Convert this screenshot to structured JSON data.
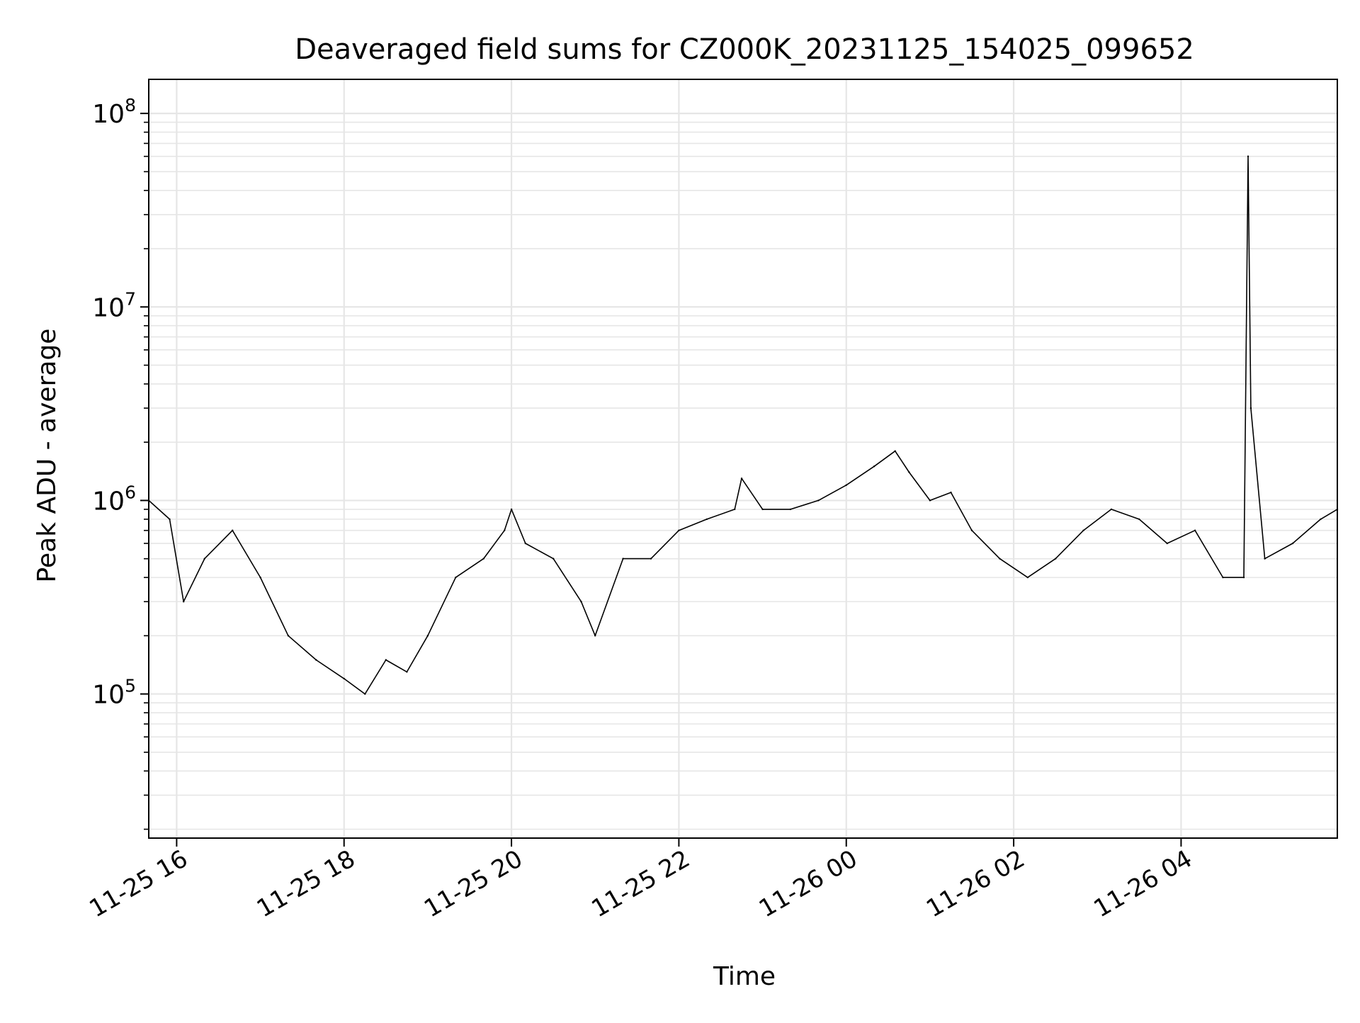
{
  "chart_data": {
    "type": "line",
    "title": "Deaveraged field sums for CZ000K_20231125_154025_099652",
    "xlabel": "Time",
    "ylabel": "Peak ADU - average",
    "yscale": "log",
    "grid": true,
    "line_color": "#000000",
    "grid_color": "#e6e6e6",
    "xlim": [
      "2023-11-25 15:40",
      "2023-11-26 05:52"
    ],
    "ylim": [
      18000,
      150000000
    ],
    "x_ticks": [
      {
        "value": "2023-11-25 16:00",
        "label": "11-25 16"
      },
      {
        "value": "2023-11-25 18:00",
        "label": "11-25 18"
      },
      {
        "value": "2023-11-25 20:00",
        "label": "11-25 20"
      },
      {
        "value": "2023-11-25 22:00",
        "label": "11-25 22"
      },
      {
        "value": "2023-11-26 00:00",
        "label": "11-26 00"
      },
      {
        "value": "2023-11-26 02:00",
        "label": "11-26 02"
      },
      {
        "value": "2023-11-26 04:00",
        "label": "11-26 04"
      }
    ],
    "y_ticks": [
      {
        "value": 100000,
        "base": "10",
        "exp": "5"
      },
      {
        "value": 1000000,
        "base": "10",
        "exp": "6"
      },
      {
        "value": 10000000,
        "base": "10",
        "exp": "7"
      },
      {
        "value": 100000000,
        "base": "10",
        "exp": "8"
      }
    ],
    "series": [
      {
        "x": [
          "2023-11-25 15:40",
          "2023-11-25 15:55",
          "2023-11-25 16:05",
          "2023-11-25 16:20",
          "2023-11-25 16:40",
          "2023-11-25 17:00",
          "2023-11-25 17:20",
          "2023-11-25 17:40",
          "2023-11-25 18:00",
          "2023-11-25 18:15",
          "2023-11-25 18:30",
          "2023-11-25 18:45",
          "2023-11-25 19:00",
          "2023-11-25 19:20",
          "2023-11-25 19:40",
          "2023-11-25 19:55",
          "2023-11-25 20:00",
          "2023-11-25 20:10",
          "2023-11-25 20:30",
          "2023-11-25 20:50",
          "2023-11-25 21:00",
          "2023-11-25 21:20",
          "2023-11-25 21:40",
          "2023-11-25 22:00",
          "2023-11-25 22:20",
          "2023-11-25 22:40",
          "2023-11-25 22:45",
          "2023-11-25 23:00",
          "2023-11-25 23:20",
          "2023-11-25 23:40",
          "2023-11-26 00:00",
          "2023-11-26 00:20",
          "2023-11-26 00:35",
          "2023-11-26 00:45",
          "2023-11-26 01:00",
          "2023-11-26 01:15",
          "2023-11-26 01:30",
          "2023-11-26 01:50",
          "2023-11-26 02:10",
          "2023-11-26 02:30",
          "2023-11-26 02:50",
          "2023-11-26 03:10",
          "2023-11-26 03:30",
          "2023-11-26 03:50",
          "2023-11-26 04:10",
          "2023-11-26 04:30",
          "2023-11-26 04:45",
          "2023-11-26 04:48",
          "2023-11-26 04:50",
          "2023-11-26 05:00",
          "2023-11-26 05:20",
          "2023-11-26 05:40",
          "2023-11-26 05:52"
        ],
        "y": [
          1000000,
          800000,
          300000,
          500000,
          700000,
          400000,
          200000,
          150000,
          120000,
          100000,
          150000,
          130000,
          200000,
          400000,
          500000,
          700000,
          900000,
          600000,
          500000,
          300000,
          200000,
          500000,
          500000,
          700000,
          800000,
          900000,
          1300000,
          900000,
          900000,
          1000000,
          1200000,
          1500000,
          1800000,
          1400000,
          1000000,
          1100000,
          700000,
          500000,
          400000,
          500000,
          700000,
          900000,
          800000,
          600000,
          700000,
          400000,
          400000,
          60000000,
          3000000,
          500000,
          600000,
          800000,
          900000
        ]
      }
    ]
  }
}
